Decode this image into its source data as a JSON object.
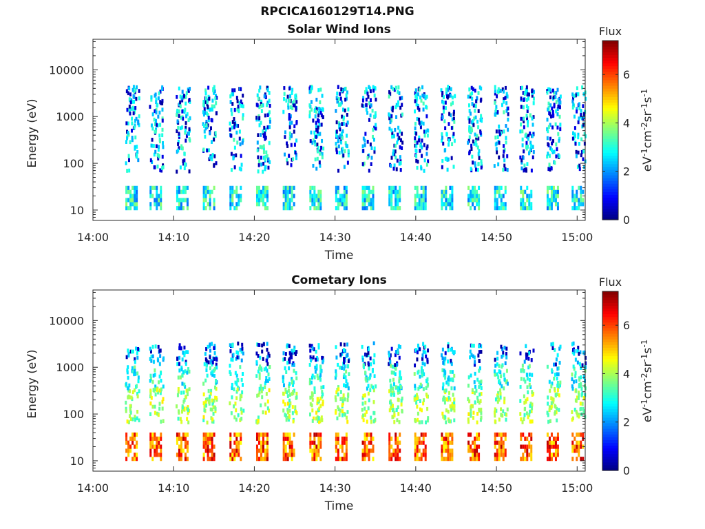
{
  "figure_title": "RPCICA160129T14.PNG",
  "chart_data": [
    {
      "type": "heatmap",
      "title": "Solar Wind Ions",
      "xlabel": "Time",
      "ylabel": "Energy (eV)",
      "x_ticks": [
        "14:00",
        "14:10",
        "14:20",
        "14:30",
        "14:40",
        "14:50",
        "15:00"
      ],
      "xlim": [
        "14:00",
        "15:00"
      ],
      "y_scale": "log",
      "y_ticks": [
        "10",
        "100",
        "1000",
        "10000"
      ],
      "ylim": [
        6,
        45000
      ],
      "colorbar": {
        "title": "Flux",
        "label": "eV-1cm-2sr-1s-1",
        "label_parts": [
          {
            "t": "eV"
          },
          {
            "s": "-1"
          },
          {
            "t": "cm"
          },
          {
            "s": "-2"
          },
          {
            "t": "sr"
          },
          {
            "s": "-1"
          },
          {
            "t": "s"
          },
          {
            "s": "-1"
          }
        ],
        "range": [
          0,
          7.4
        ],
        "ticks": [
          "0",
          "2",
          "4",
          "6"
        ],
        "colormap": "jet"
      },
      "sweeps_minutes": [
        4.7,
        7.7,
        11.0,
        14.3,
        17.6,
        20.9,
        24.2,
        27.5,
        30.7,
        34.0,
        37.3,
        40.5,
        43.8,
        47.1,
        50.4,
        53.6,
        56.9,
        60.0
      ],
      "low_energy_band_eV": [
        10,
        30
      ],
      "low_energy_flux": 2.8,
      "high_energy_flux_range": [
        0.3,
        3.2
      ],
      "scattered_energy_range_eV": [
        60,
        4000
      ]
    },
    {
      "type": "heatmap",
      "title": "Cometary Ions",
      "xlabel": "Time",
      "ylabel": "Energy (eV)",
      "x_ticks": [
        "14:00",
        "14:10",
        "14:20",
        "14:30",
        "14:40",
        "14:50",
        "15:00"
      ],
      "xlim": [
        "14:00",
        "15:00"
      ],
      "y_scale": "log",
      "y_ticks": [
        "10",
        "100",
        "1000",
        "10000"
      ],
      "ylim": [
        6,
        45000
      ],
      "colorbar": {
        "title": "Flux",
        "label": "eV-1cm-2sr-1s-1",
        "label_parts": [
          {
            "t": "eV"
          },
          {
            "s": "-1"
          },
          {
            "t": "cm"
          },
          {
            "s": "-2"
          },
          {
            "t": "sr"
          },
          {
            "s": "-1"
          },
          {
            "t": "s"
          },
          {
            "s": "-1"
          }
        ],
        "range": [
          0,
          7.4
        ],
        "ticks": [
          "0",
          "2",
          "4",
          "6"
        ],
        "colormap": "jet"
      },
      "sweeps_minutes": [
        4.7,
        7.7,
        11.0,
        14.3,
        17.6,
        20.9,
        24.2,
        27.5,
        30.7,
        34.0,
        37.3,
        40.5,
        43.8,
        47.1,
        50.4,
        53.6,
        56.9,
        60.0
      ],
      "low_energy_band_eV": [
        10,
        35
      ],
      "low_energy_flux": 5.8,
      "mid_energy_flux_range": [
        3.0,
        4.8
      ],
      "scattered_energy_range_eV": [
        60,
        3000
      ]
    }
  ]
}
